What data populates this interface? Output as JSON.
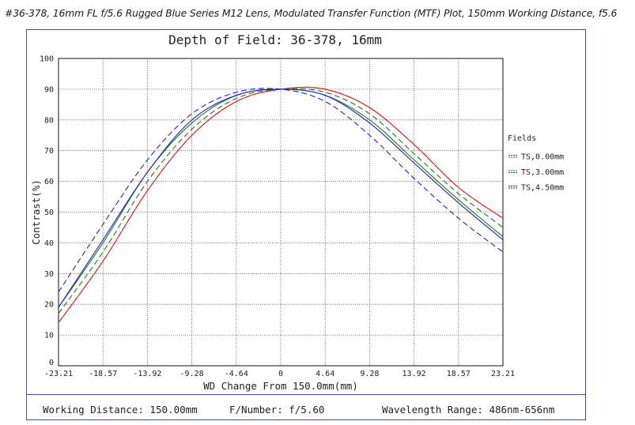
{
  "header": {
    "caption": "#36-378, 16mm FL f/5.6 Rugged Blue Series M12 Lens, Modulated Transfer Function (MTF) Plot, 150mm Working Distance, f5.6"
  },
  "chart_data": {
    "type": "line",
    "title": "Depth of Field: 36-378, 16mm",
    "xlabel": "WD Change From 150.0mm(mm)",
    "ylabel": "Contrast(%)",
    "xlim": [
      -23.21,
      23.21
    ],
    "ylim": [
      0,
      100
    ],
    "x_ticks": [
      "-23.21",
      "-18.57",
      "-13.92",
      "-9.28",
      "-4.64",
      "0",
      "4.64",
      "9.28",
      "13.92",
      "18.57",
      "23.21"
    ],
    "y_ticks": [
      "0",
      "10",
      "20",
      "30",
      "40",
      "50",
      "60",
      "70",
      "80",
      "90",
      "100"
    ],
    "grid": true,
    "legend_title": "Fields",
    "legend_position": "right",
    "x": [
      -23.21,
      -18.57,
      -13.92,
      -9.28,
      -4.64,
      0,
      4.64,
      9.28,
      13.92,
      18.57,
      23.21
    ],
    "series": [
      {
        "name": "TS,0.00mm",
        "pair": "tangential",
        "color": "#e02020",
        "dashed": false,
        "values": [
          14,
          34,
          57,
          75,
          86,
          90,
          90,
          84,
          72,
          58,
          48
        ]
      },
      {
        "name": "TS,0.00mm",
        "pair": "sagittal",
        "color": "#e02020",
        "dashed": true,
        "values": [
          14,
          34,
          57,
          75,
          86,
          90,
          90,
          84,
          72,
          58,
          48
        ]
      },
      {
        "name": "TS,3.00mm",
        "pair": "tangential",
        "color": "#1c7a1c",
        "dashed": false,
        "values": [
          19,
          40,
          63,
          79,
          88,
          90,
          88,
          80,
          67,
          54,
          42
        ]
      },
      {
        "name": "TS,3.00mm",
        "pair": "sagittal",
        "color": "#1c7a1c",
        "dashed": true,
        "values": [
          17,
          37,
          60,
          77,
          87,
          90,
          89,
          82,
          69,
          56,
          45
        ]
      },
      {
        "name": "TS,4.50mm",
        "pair": "tangential",
        "color": "#2020d8",
        "dashed": false,
        "values": [
          19,
          41,
          63,
          80,
          88,
          90,
          88,
          79,
          66,
          53,
          41
        ]
      },
      {
        "name": "TS,4.50mm",
        "pair": "sagittal",
        "color": "#2020d8",
        "dashed": true,
        "values": [
          24,
          46,
          67,
          82,
          89,
          90,
          86,
          75,
          61,
          48,
          37
        ]
      }
    ],
    "legend": [
      {
        "label": "TS,0.00mm",
        "color": "#e02020"
      },
      {
        "label": "TS,3.00mm",
        "color": "#1c7a1c"
      },
      {
        "label": "TS,4.50mm",
        "color": "#2020d8"
      }
    ]
  },
  "footer": {
    "working_distance": "Working Distance: 150.00mm",
    "f_number": "F/Number: f/5.60",
    "wavelength": "Wavelength Range: 486nm-656nm"
  }
}
